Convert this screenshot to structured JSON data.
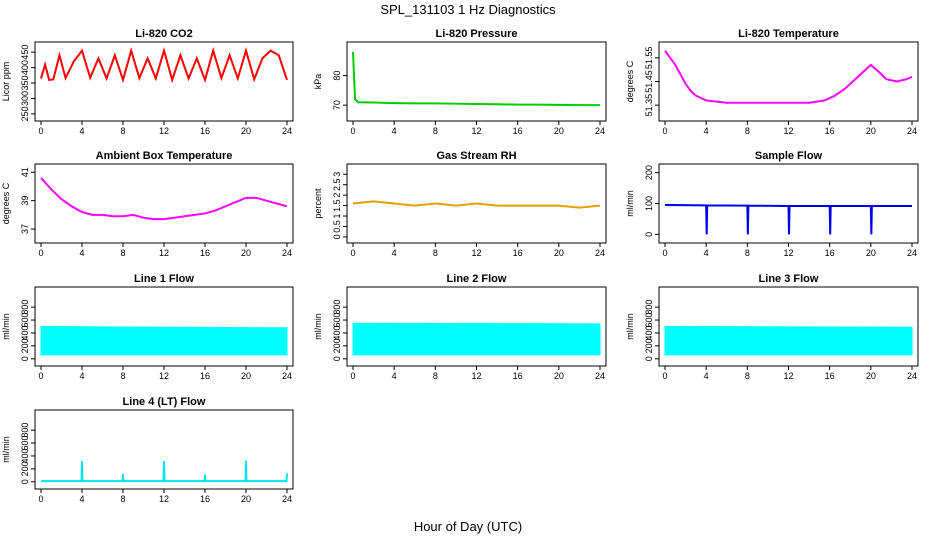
{
  "figure": {
    "title": "SPL_131103  1 Hz Diagnostics",
    "xlabel": "Hour of Day (UTC)"
  },
  "chart_data": [
    {
      "type": "line",
      "title": "Li-820 CO2",
      "ylabel": "Licor ppm",
      "color": "#ff0000",
      "xlim": [
        0,
        24
      ],
      "ylim": [
        240,
        470
      ],
      "xticks": [
        0,
        4,
        8,
        12,
        16,
        20,
        24
      ],
      "yticks": [
        250,
        300,
        350,
        400,
        450
      ],
      "series": [
        {
          "x": [
            0,
            0.4,
            0.8,
            1.2,
            1.8,
            2.4,
            3.2,
            4.0,
            4.8,
            5.6,
            6.4,
            7.2,
            8.0,
            8.8,
            9.6,
            10.4,
            11.2,
            12.0,
            12.8,
            13.6,
            14.4,
            15.2,
            16.0,
            16.8,
            17.6,
            18.4,
            19.2,
            20.0,
            20.8,
            21.6,
            22.4,
            23.2,
            24.0
          ],
          "y": [
            365,
            410,
            360,
            362,
            440,
            366,
            420,
            455,
            367,
            430,
            365,
            440,
            360,
            455,
            366,
            430,
            365,
            455,
            360,
            440,
            365,
            430,
            360,
            455,
            366,
            440,
            365,
            455,
            362,
            430,
            455,
            440,
            360
          ]
        }
      ]
    },
    {
      "type": "line",
      "title": "Li-820 Pressure",
      "ylabel": "kPa",
      "color": "#00cc00",
      "xlim": [
        0,
        24
      ],
      "ylim": [
        66,
        90
      ],
      "xticks": [
        0,
        4,
        8,
        12,
        16,
        20,
        24
      ],
      "yticks": [
        70,
        80
      ],
      "series": [
        {
          "x": [
            0,
            0.2,
            0.5,
            2,
            4,
            6,
            8,
            10,
            12,
            14,
            16,
            18,
            20,
            22,
            24
          ],
          "y": [
            88,
            72,
            71,
            70.9,
            70.7,
            70.6,
            70.6,
            70.5,
            70.4,
            70.3,
            70.2,
            70.2,
            70.1,
            70.0,
            70.0
          ]
        }
      ]
    },
    {
      "type": "line",
      "title": "Li-820 Temperature",
      "ylabel": "degrees C",
      "color": "#ff00ff",
      "xlim": [
        0,
        24
      ],
      "ylim": [
        51.3,
        51.6
      ],
      "xticks": [
        0,
        4,
        8,
        12,
        16,
        20,
        24
      ],
      "yticks": [
        51.35,
        51.45,
        51.55
      ],
      "series": [
        {
          "x": [
            0,
            0.5,
            1,
            1.5,
            2,
            2.5,
            3,
            4,
            6,
            8,
            10,
            12,
            14,
            15.5,
            16.5,
            17.5,
            18.5,
            19.5,
            20,
            20.8,
            21.5,
            22.5,
            23.5,
            24
          ],
          "y": [
            51.58,
            51.55,
            51.52,
            51.48,
            51.44,
            51.41,
            51.39,
            51.37,
            51.36,
            51.36,
            51.36,
            51.36,
            51.36,
            51.37,
            51.39,
            51.42,
            51.46,
            51.5,
            51.52,
            51.49,
            51.46,
            51.45,
            51.46,
            51.47
          ]
        }
      ]
    },
    {
      "type": "line",
      "title": "Ambient Box Temperature",
      "ylabel": "degrees C",
      "color": "#ff00ff",
      "xlim": [
        0,
        24
      ],
      "ylim": [
        36.3,
        41.3
      ],
      "xticks": [
        0,
        4,
        8,
        12,
        16,
        20,
        24
      ],
      "yticks": [
        37,
        39,
        41
      ],
      "series": [
        {
          "x": [
            0,
            1,
            2,
            3,
            4,
            5,
            6,
            7,
            8,
            9,
            10,
            11,
            12,
            13,
            14,
            15,
            16,
            17,
            18,
            19,
            20,
            21,
            22,
            23,
            24
          ],
          "y": [
            40.6,
            39.8,
            39.1,
            38.6,
            38.2,
            38.0,
            38.0,
            37.9,
            37.9,
            38.0,
            37.8,
            37.7,
            37.7,
            37.8,
            37.9,
            38.0,
            38.1,
            38.3,
            38.6,
            38.9,
            39.2,
            39.2,
            39.0,
            38.8,
            38.6
          ]
        }
      ]
    },
    {
      "type": "line",
      "title": "Gas Stream RH",
      "ylabel": "percent",
      "color": "#e69f00",
      "xlim": [
        0,
        24
      ],
      "ylim": [
        -0.1,
        3.3
      ],
      "xticks": [
        0,
        4,
        8,
        12,
        16,
        20,
        24
      ],
      "yticks": [
        0.0,
        0.5,
        1.0,
        1.5,
        2.0,
        2.5,
        3.0
      ],
      "series": [
        {
          "x": [
            0,
            2,
            4,
            6,
            8,
            10,
            12,
            14,
            16,
            18,
            20,
            22,
            24
          ],
          "y": [
            1.6,
            1.7,
            1.6,
            1.5,
            1.6,
            1.5,
            1.6,
            1.5,
            1.5,
            1.5,
            1.5,
            1.4,
            1.5
          ]
        }
      ]
    },
    {
      "type": "line",
      "title": "Sample Flow",
      "ylabel": "ml/min",
      "color": "#0000ee",
      "xlim": [
        0,
        24
      ],
      "ylim": [
        -15,
        215
      ],
      "xticks": [
        0,
        4,
        8,
        12,
        16,
        20,
        24
      ],
      "yticks": [
        0,
        100,
        200
      ],
      "series": [
        {
          "x": [
            0,
            4,
            4.05,
            4.1,
            8,
            8.05,
            8.1,
            12,
            12.05,
            12.1,
            16,
            16.05,
            16.1,
            20,
            20.05,
            20.1,
            24
          ],
          "y": [
            95,
            94,
            0,
            94,
            93,
            0,
            93,
            92,
            0,
            92,
            92,
            0,
            92,
            92,
            0,
            92,
            92
          ]
        }
      ]
    },
    {
      "type": "area",
      "title": "Line 1 Flow",
      "ylabel": "ml/min",
      "color": "#00ffff",
      "xlim": [
        0,
        24
      ],
      "ylim": [
        -50,
        1050
      ],
      "xticks": [
        0,
        4,
        8,
        12,
        16,
        20,
        24
      ],
      "yticks": [
        0,
        200,
        400,
        600,
        800
      ],
      "series": [
        {
          "x": [
            0,
            24
          ],
          "ymin": [
            60,
            60
          ],
          "ymax": [
            500,
            480
          ]
        }
      ]
    },
    {
      "type": "area",
      "title": "Line 2 Flow",
      "ylabel": "ml/min",
      "color": "#00ffff",
      "xlim": [
        0,
        24
      ],
      "ylim": [
        -50,
        1050
      ],
      "xticks": [
        0,
        4,
        8,
        12,
        16,
        20,
        24
      ],
      "yticks": [
        0,
        200,
        400,
        600,
        800
      ],
      "series": [
        {
          "x": [
            0,
            24
          ],
          "ymin": [
            60,
            60
          ],
          "ymax": [
            550,
            540
          ]
        }
      ]
    },
    {
      "type": "area",
      "title": "Line 3 Flow",
      "ylabel": "ml/min",
      "color": "#00ffff",
      "xlim": [
        0,
        24
      ],
      "ylim": [
        -50,
        1050
      ],
      "xticks": [
        0,
        4,
        8,
        12,
        16,
        20,
        24
      ],
      "yticks": [
        0,
        200,
        400,
        600,
        800
      ],
      "series": [
        {
          "x": [
            0,
            24
          ],
          "ymin": [
            60,
            60
          ],
          "ymax": [
            500,
            490
          ]
        }
      ]
    },
    {
      "type": "line",
      "title": "Line 4 (LT) Flow",
      "ylabel": "ml/min",
      "color": "#00e5ee",
      "xlim": [
        0,
        24
      ],
      "ylim": [
        -50,
        1050
      ],
      "xticks": [
        0,
        4,
        8,
        12,
        16,
        20,
        24
      ],
      "yticks": [
        0,
        200,
        400,
        600,
        800
      ],
      "series": [
        {
          "x": [
            0,
            3.95,
            4.0,
            4.05,
            7.95,
            8.0,
            8.05,
            11.95,
            12.0,
            12.05,
            15.95,
            16.0,
            16.05,
            19.95,
            20.0,
            20.05,
            23.95,
            24.0
          ],
          "y": [
            10,
            10,
            320,
            10,
            10,
            120,
            10,
            10,
            320,
            10,
            10,
            110,
            10,
            10,
            330,
            10,
            10,
            130
          ]
        }
      ]
    }
  ]
}
